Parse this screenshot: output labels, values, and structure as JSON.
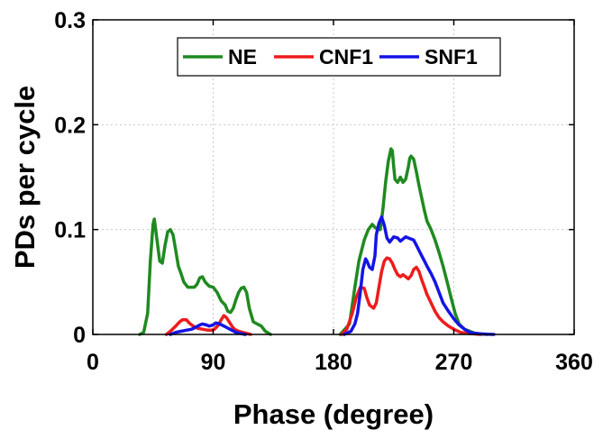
{
  "chart_data": {
    "type": "line",
    "title": "",
    "xlabel": "Phase (degree)",
    "ylabel": "PDs per cycle",
    "xlim": [
      0,
      360
    ],
    "ylim": [
      0,
      0.3
    ],
    "xticks": [
      0,
      90,
      180,
      270,
      360
    ],
    "xtick_labels": [
      "0",
      "90",
      "180",
      "270",
      "360"
    ],
    "yticks": [
      0,
      0.1,
      0.2,
      0.3
    ],
    "ytick_labels": [
      "0",
      "0.1",
      "0.2",
      "0.3"
    ],
    "grid": true,
    "legend": "top-center, horizontal",
    "series": [
      {
        "name": "NE",
        "color": "#1f8a1f",
        "x": [
          35,
          38,
          41,
          43,
          45,
          46,
          48,
          50,
          52,
          54,
          56,
          58,
          60,
          62,
          64,
          66,
          68,
          71,
          74,
          76,
          78,
          80,
          82,
          84,
          87,
          90,
          93,
          96,
          99,
          101,
          103,
          105,
          107,
          109,
          111,
          113,
          115,
          117,
          120,
          123,
          126,
          129,
          133,
          null,
          185,
          192,
          196,
          199,
          203,
          206,
          209,
          211,
          213,
          215,
          217,
          219,
          221,
          223,
          224,
          225,
          226,
          228,
          230,
          232,
          234,
          236,
          237,
          238,
          240,
          242,
          244,
          246,
          248,
          250,
          253,
          256,
          259,
          262,
          265,
          268,
          271,
          274,
          278,
          282,
          286,
          290,
          295
        ],
        "y": [
          0,
          0.002,
          0.02,
          0.07,
          0.105,
          0.11,
          0.09,
          0.07,
          0.068,
          0.085,
          0.098,
          0.1,
          0.095,
          0.08,
          0.065,
          0.058,
          0.05,
          0.045,
          0.045,
          0.045,
          0.048,
          0.054,
          0.055,
          0.05,
          0.046,
          0.045,
          0.04,
          0.032,
          0.028,
          0.022,
          0.021,
          0.025,
          0.033,
          0.04,
          0.044,
          0.045,
          0.04,
          0.025,
          0.012,
          0.01,
          0.008,
          0.003,
          0,
          null,
          0,
          0.01,
          0.045,
          0.07,
          0.09,
          0.1,
          0.105,
          0.102,
          0.1,
          0.1,
          0.12,
          0.145,
          0.165,
          0.177,
          0.175,
          0.16,
          0.148,
          0.145,
          0.15,
          0.145,
          0.148,
          0.16,
          0.168,
          0.17,
          0.167,
          0.155,
          0.142,
          0.13,
          0.118,
          0.108,
          0.1,
          0.09,
          0.078,
          0.065,
          0.05,
          0.035,
          0.02,
          0.01,
          0.005,
          0.003,
          0.001,
          0.0005,
          0
        ]
      },
      {
        "name": "CNF1",
        "color": "#ee1c1c",
        "x": [
          55,
          58,
          62,
          65,
          67,
          70,
          72,
          75,
          78,
          82,
          86,
          89,
          91,
          94,
          96,
          98,
          100,
          102,
          104,
          106,
          109,
          112,
          115,
          118,
          null,
          186,
          190,
          194,
          197,
          200,
          203,
          205,
          207,
          210,
          212,
          214,
          216,
          218,
          220,
          222,
          224,
          226,
          228,
          230,
          232,
          234,
          236,
          238,
          240,
          242,
          244,
          246,
          248,
          250,
          253,
          256,
          259,
          262,
          266,
          270,
          275,
          280,
          285,
          290
        ],
        "y": [
          0,
          0.003,
          0.008,
          0.012,
          0.014,
          0.014,
          0.011,
          0.008,
          0.006,
          0.005,
          0.004,
          0.004,
          0.005,
          0.009,
          0.014,
          0.018,
          0.016,
          0.012,
          0.008,
          0.005,
          0.003,
          0.002,
          0.001,
          0,
          null,
          0,
          0.005,
          0.02,
          0.035,
          0.045,
          0.044,
          0.035,
          0.028,
          0.025,
          0.03,
          0.045,
          0.06,
          0.07,
          0.073,
          0.072,
          0.068,
          0.062,
          0.057,
          0.055,
          0.057,
          0.055,
          0.053,
          0.056,
          0.062,
          0.064,
          0.06,
          0.052,
          0.045,
          0.038,
          0.03,
          0.022,
          0.016,
          0.012,
          0.008,
          0.005,
          0.002,
          0.001,
          0.0005,
          0
        ]
      },
      {
        "name": "SNF1",
        "color": "#1414e6",
        "x": [
          58,
          62,
          66,
          70,
          74,
          77,
          80,
          82,
          85,
          87,
          90,
          92,
          95,
          98,
          101,
          104,
          107,
          110,
          114,
          null,
          188,
          193,
          196,
          198,
          200,
          202,
          204,
          205,
          207,
          209,
          211,
          212,
          214,
          216,
          218,
          220,
          222,
          225,
          228,
          230,
          232,
          234,
          236,
          238,
          240,
          242,
          244,
          246,
          248,
          250,
          253,
          256,
          259,
          262,
          266,
          270,
          274,
          278,
          282,
          286,
          290,
          295,
          300
        ],
        "y": [
          0,
          0.002,
          0.003,
          0.004,
          0.005,
          0.007,
          0.009,
          0.01,
          0.009,
          0.008,
          0.009,
          0.011,
          0.01,
          0.008,
          0.006,
          0.004,
          0.002,
          0.001,
          0,
          null,
          0,
          0.003,
          0.01,
          0.02,
          0.04,
          0.062,
          0.072,
          0.07,
          0.064,
          0.062,
          0.075,
          0.095,
          0.106,
          0.112,
          0.104,
          0.092,
          0.088,
          0.093,
          0.092,
          0.089,
          0.091,
          0.093,
          0.092,
          0.091,
          0.09,
          0.085,
          0.08,
          0.075,
          0.07,
          0.065,
          0.058,
          0.05,
          0.04,
          0.03,
          0.022,
          0.015,
          0.009,
          0.005,
          0.002,
          0.001,
          0.0005,
          0.0002,
          0
        ]
      }
    ]
  }
}
